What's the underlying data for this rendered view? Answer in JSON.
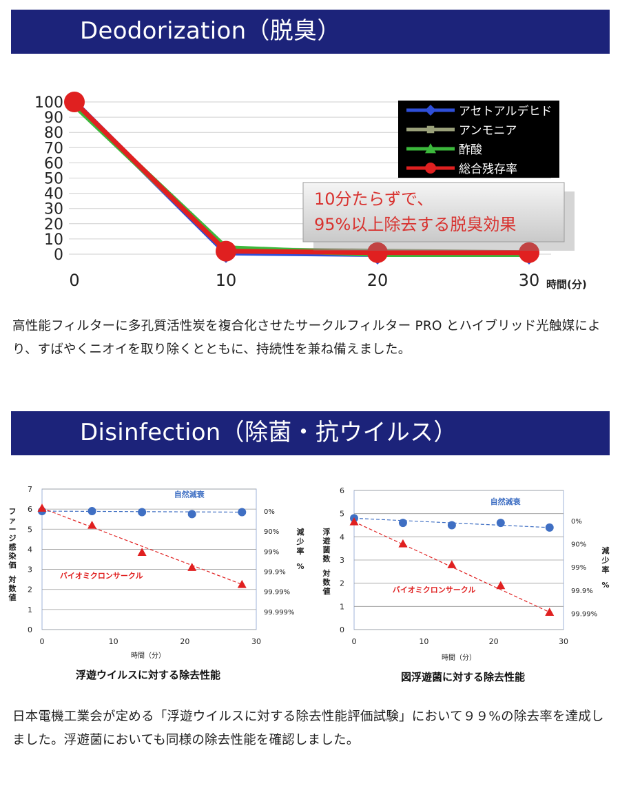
{
  "deodorization": {
    "title": "Deodorization（脱臭）",
    "paragraph": "高性能フィルターに多孔質活性炭を複合化させたサークルフィルター PRO とハイブリッド光触媒により、すばやくニオイを取り除くとともに、持続性を兼ね備えました。"
  },
  "disinfection": {
    "title": "Disinfection（除菌・抗ウイルス）",
    "paragraph": "日本電機工業会が定める「浮遊ウイルスに対する除去性能評価試験」において９９%の除去率を達成しました。浮遊菌においても同様の除去性能を確認しました。"
  },
  "colors": {
    "banner": "#1c237a",
    "blue": "#2f4fd8",
    "red": "#e02020",
    "green": "#3cb83c",
    "gray": "#9aa07a",
    "accent_text": "#d8322f"
  },
  "chart_data": [
    {
      "type": "line",
      "x": [
        0,
        10,
        20,
        30
      ],
      "x_ticks": [
        "0",
        "10",
        "20",
        "30"
      ],
      "xlabel": "時間(分)",
      "y_ticks": [
        "100",
        "90",
        "80",
        "70",
        "60",
        "50",
        "40",
        "30",
        "20",
        "10",
        "0"
      ],
      "ylim": [
        0,
        100
      ],
      "grid": true,
      "legend_position": "top-right",
      "series": [
        {
          "name": "アセトアルデヒド",
          "color": "#2f4fd8",
          "marker": "diamond",
          "values": [
            100,
            1,
            0,
            0
          ]
        },
        {
          "name": "アンモニア",
          "color": "#9aa07a",
          "marker": "square",
          "values": [
            98,
            3,
            2,
            1
          ]
        },
        {
          "name": "酢酸",
          "color": "#3cb83c",
          "marker": "triangle",
          "values": [
            98,
            4,
            0,
            0
          ]
        },
        {
          "name": "総合残存率",
          "color": "#e02020",
          "marker": "circle",
          "values": [
            100,
            2,
            1,
            1
          ]
        }
      ],
      "annotation": {
        "line1": "10分たらずで、",
        "line2": "95%以上除去する脱臭効果"
      }
    },
    {
      "type": "line",
      "caption": "浮遊ウイルスに対する除去性能",
      "x_ticks": [
        "0",
        "10",
        "20",
        "30"
      ],
      "xlim": [
        0,
        30
      ],
      "xlabel": "時間（分）",
      "ylabel": "ファージ感染価 対数値",
      "y_ticks": [
        "0",
        "1",
        "2",
        "3",
        "4",
        "5",
        "6",
        "7"
      ],
      "ylim": [
        0,
        7
      ],
      "right_ylabel": "減少率 %",
      "right_ticks": [
        {
          "label": "0%",
          "value": 5.9
        },
        {
          "label": "90%",
          "value": 4.9
        },
        {
          "label": "99%",
          "value": 3.9
        },
        {
          "label": "99.9%",
          "value": 2.9
        },
        {
          "label": "99.99%",
          "value": 1.9
        },
        {
          "label": "99.999%",
          "value": 0.9
        }
      ],
      "grid": true,
      "series": [
        {
          "name": "自然減衰",
          "color": "#3f6fc3",
          "marker": "circle",
          "x": [
            0,
            7,
            14,
            21,
            28
          ],
          "values": [
            5.9,
            5.9,
            5.85,
            5.75,
            5.85
          ],
          "label_pos": {
            "x": 18.5,
            "y": 6.6
          }
        },
        {
          "name": "バイオミクロンサークル",
          "color": "#e02020",
          "marker": "triangle",
          "x": [
            0,
            7,
            14,
            21,
            28
          ],
          "values": [
            6.05,
            5.2,
            3.85,
            3.1,
            2.25
          ],
          "label_pos": {
            "x": 2.5,
            "y": 2.55
          }
        }
      ]
    },
    {
      "type": "line",
      "caption": "図浮遊菌に対する除去性能",
      "x_ticks": [
        "0",
        "10",
        "20",
        "30"
      ],
      "xlim": [
        0,
        30
      ],
      "xlabel": "時間（分）",
      "ylabel": "浮遊菌数 対数値",
      "y_ticks": [
        "0",
        "1",
        "2",
        "3",
        "4",
        "5",
        "6"
      ],
      "ylim": [
        0,
        6
      ],
      "right_ylabel": "減少率 %",
      "right_ticks": [
        {
          "label": "0%",
          "value": 4.7
        },
        {
          "label": "90%",
          "value": 3.7
        },
        {
          "label": "99%",
          "value": 2.7
        },
        {
          "label": "99.9%",
          "value": 1.7
        },
        {
          "label": "99.99%",
          "value": 0.7
        }
      ],
      "grid": true,
      "series": [
        {
          "name": "自然減衰",
          "color": "#3f6fc3",
          "marker": "circle",
          "x": [
            0,
            7,
            14,
            21,
            28
          ],
          "values": [
            4.8,
            4.6,
            4.5,
            4.6,
            4.4
          ],
          "label_pos": {
            "x": 19.5,
            "y": 5.4
          }
        },
        {
          "name": "バイオミクロンサークル",
          "color": "#e02020",
          "marker": "triangle",
          "x": [
            0,
            7,
            14,
            21,
            28
          ],
          "values": [
            4.65,
            3.7,
            2.8,
            1.9,
            0.75
          ],
          "label_pos": {
            "x": 5.5,
            "y": 1.6
          }
        }
      ]
    }
  ]
}
